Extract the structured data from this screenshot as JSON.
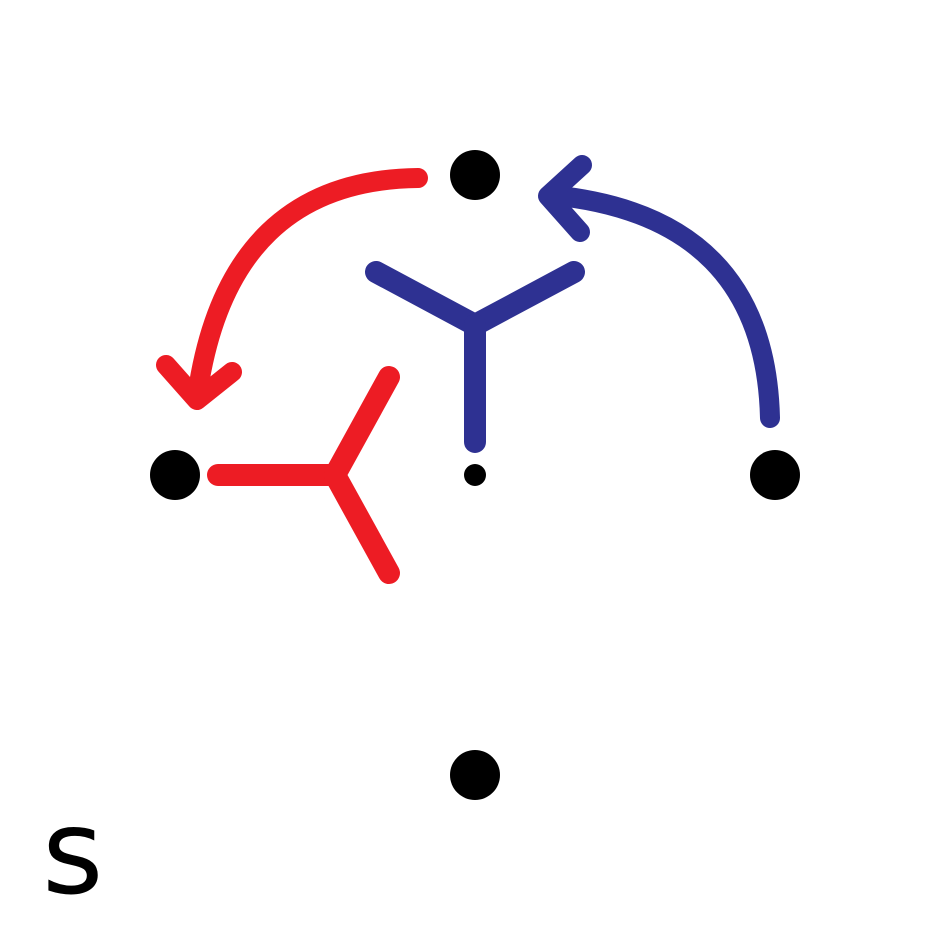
{
  "corner_label": "s",
  "colors": {
    "background": "#ffffff",
    "dots": "#000000",
    "red_symbol": "#ed1c24",
    "blue_symbol": "#2e3192"
  },
  "symbols": [
    {
      "name": "blue-y-symbol",
      "color": "blue"
    },
    {
      "name": "red-y-symbol",
      "color": "red"
    }
  ]
}
